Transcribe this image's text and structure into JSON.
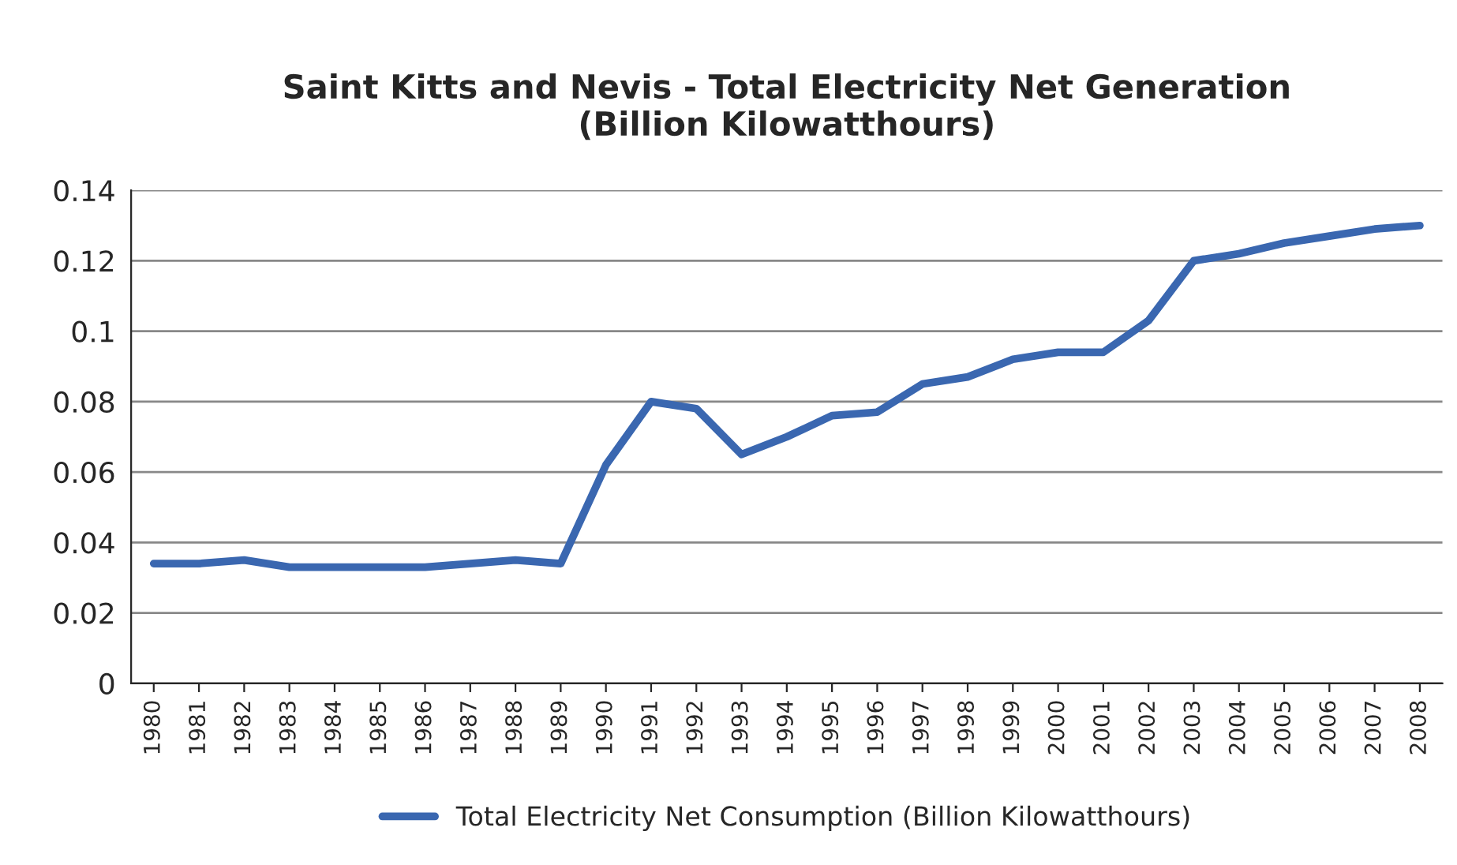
{
  "chart_data": {
    "type": "line",
    "title": "Saint Kitts and Nevis - Total Electricity Net Generation\n(Billion Kilowatthours)",
    "categories": [
      "1980",
      "1981",
      "1982",
      "1983",
      "1984",
      "1985",
      "1986",
      "1987",
      "1988",
      "1989",
      "1990",
      "1991",
      "1992",
      "1993",
      "1994",
      "1995",
      "1996",
      "1997",
      "1998",
      "1999",
      "2000",
      "2001",
      "2002",
      "2003",
      "2004",
      "2005",
      "2006",
      "2007",
      "2008"
    ],
    "series": [
      {
        "name": "Total Electricity Net Consumption (Billion Kilowatthours)",
        "color": "#3a67b0",
        "values": [
          0.034,
          0.034,
          0.035,
          0.033,
          0.033,
          0.033,
          0.033,
          0.034,
          0.035,
          0.034,
          0.062,
          0.08,
          0.078,
          0.065,
          0.07,
          0.076,
          0.077,
          0.085,
          0.087,
          0.092,
          0.094,
          0.094,
          0.103,
          0.12,
          0.122,
          0.125,
          0.127,
          0.129,
          0.13
        ]
      }
    ],
    "ylim": [
      0,
      0.14
    ],
    "yticks": [
      0,
      0.02,
      0.04,
      0.06,
      0.08,
      {
        "value": 0.1,
        "label": "0.1"
      },
      0.12,
      0.14
    ],
    "grid": "y",
    "legend": "bottom",
    "marker": "none",
    "line_style": "solid"
  }
}
